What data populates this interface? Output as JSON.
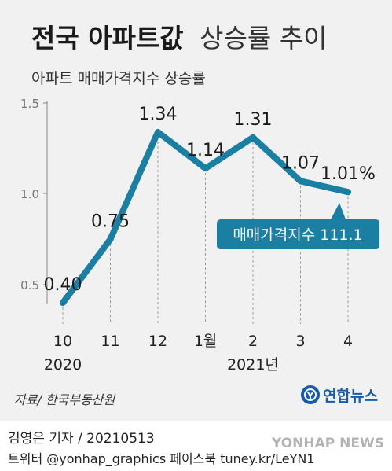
{
  "title": {
    "bold": "전국 아파트값",
    "light": "상승률 추이"
  },
  "subtitle": "아파트 매매가격지수 상승률",
  "source": "자료/ 한국부동산원",
  "brand": {
    "icon_letter": "Y",
    "name": "연합뉴스"
  },
  "credit": {
    "reporter": "김영은 기자 / 20210513",
    "social": "트위터 @yonhap_graphics  페이스북 tuney.kr/LeYN1"
  },
  "watermark": "YONHAP NEWS",
  "colors": {
    "line": "#1a7fa3",
    "callout": "#1a7fa3",
    "background": "#f1f1f1",
    "brand": "#1a5ba8"
  },
  "chart_data": {
    "type": "line",
    "x": [
      "10",
      "11",
      "12",
      "1월",
      "2",
      "3",
      "4"
    ],
    "x_year_labels": [
      "2020",
      "",
      "",
      "",
      "2021년",
      "",
      ""
    ],
    "y": [
      0.4,
      0.75,
      1.34,
      1.14,
      1.31,
      1.07,
      1.01
    ],
    "data_labels": [
      "0.40",
      "0.75",
      "1.34",
      "1.14",
      "1.31",
      "1.07",
      "1.01%"
    ],
    "y_ticks": [
      "0.5",
      "1.0",
      "1.5"
    ],
    "ylim": [
      0.3,
      1.5
    ],
    "grid": "vertical-dashed",
    "annotation": "매매가격지수 111.1"
  }
}
